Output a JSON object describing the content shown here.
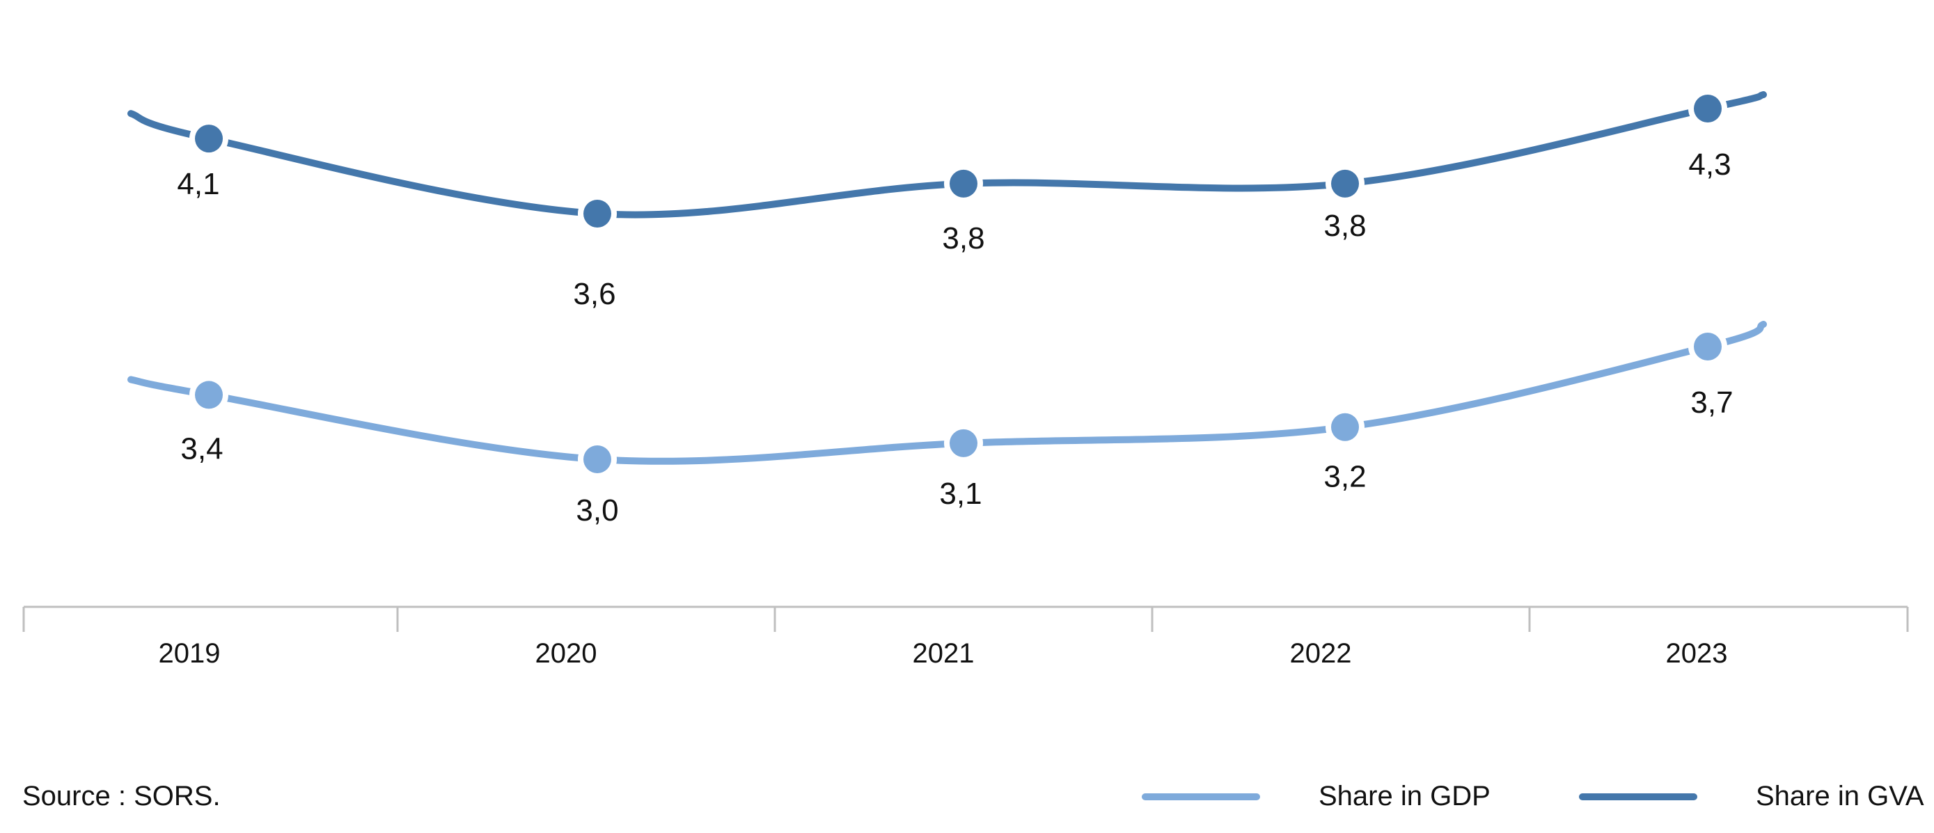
{
  "chart_data": {
    "type": "line",
    "categories": [
      "2019",
      "2020",
      "2021",
      "2022",
      "2023"
    ],
    "series": [
      {
        "name": "Share in GVA",
        "values": [
          4.1,
          3.6,
          3.8,
          3.8,
          4.3
        ],
        "labels": [
          "4,1",
          "3,6",
          "3,8",
          "3,8",
          "4,3"
        ],
        "color": "#4477ab"
      },
      {
        "name": "Share in GDP",
        "values": [
          3.4,
          3.0,
          3.1,
          3.2,
          3.7
        ],
        "labels": [
          "3,4",
          "3,0",
          "3,1",
          "3,2",
          "3,7"
        ],
        "color": "#7eaadb"
      }
    ],
    "title": "",
    "xlabel": "",
    "ylabel": "",
    "grid": false,
    "legend_position": "bottom-right"
  },
  "source_text": "Source : SORS.",
  "legend": {
    "gdp_label": "Share in GDP",
    "gva_label": "Share in GVA"
  }
}
